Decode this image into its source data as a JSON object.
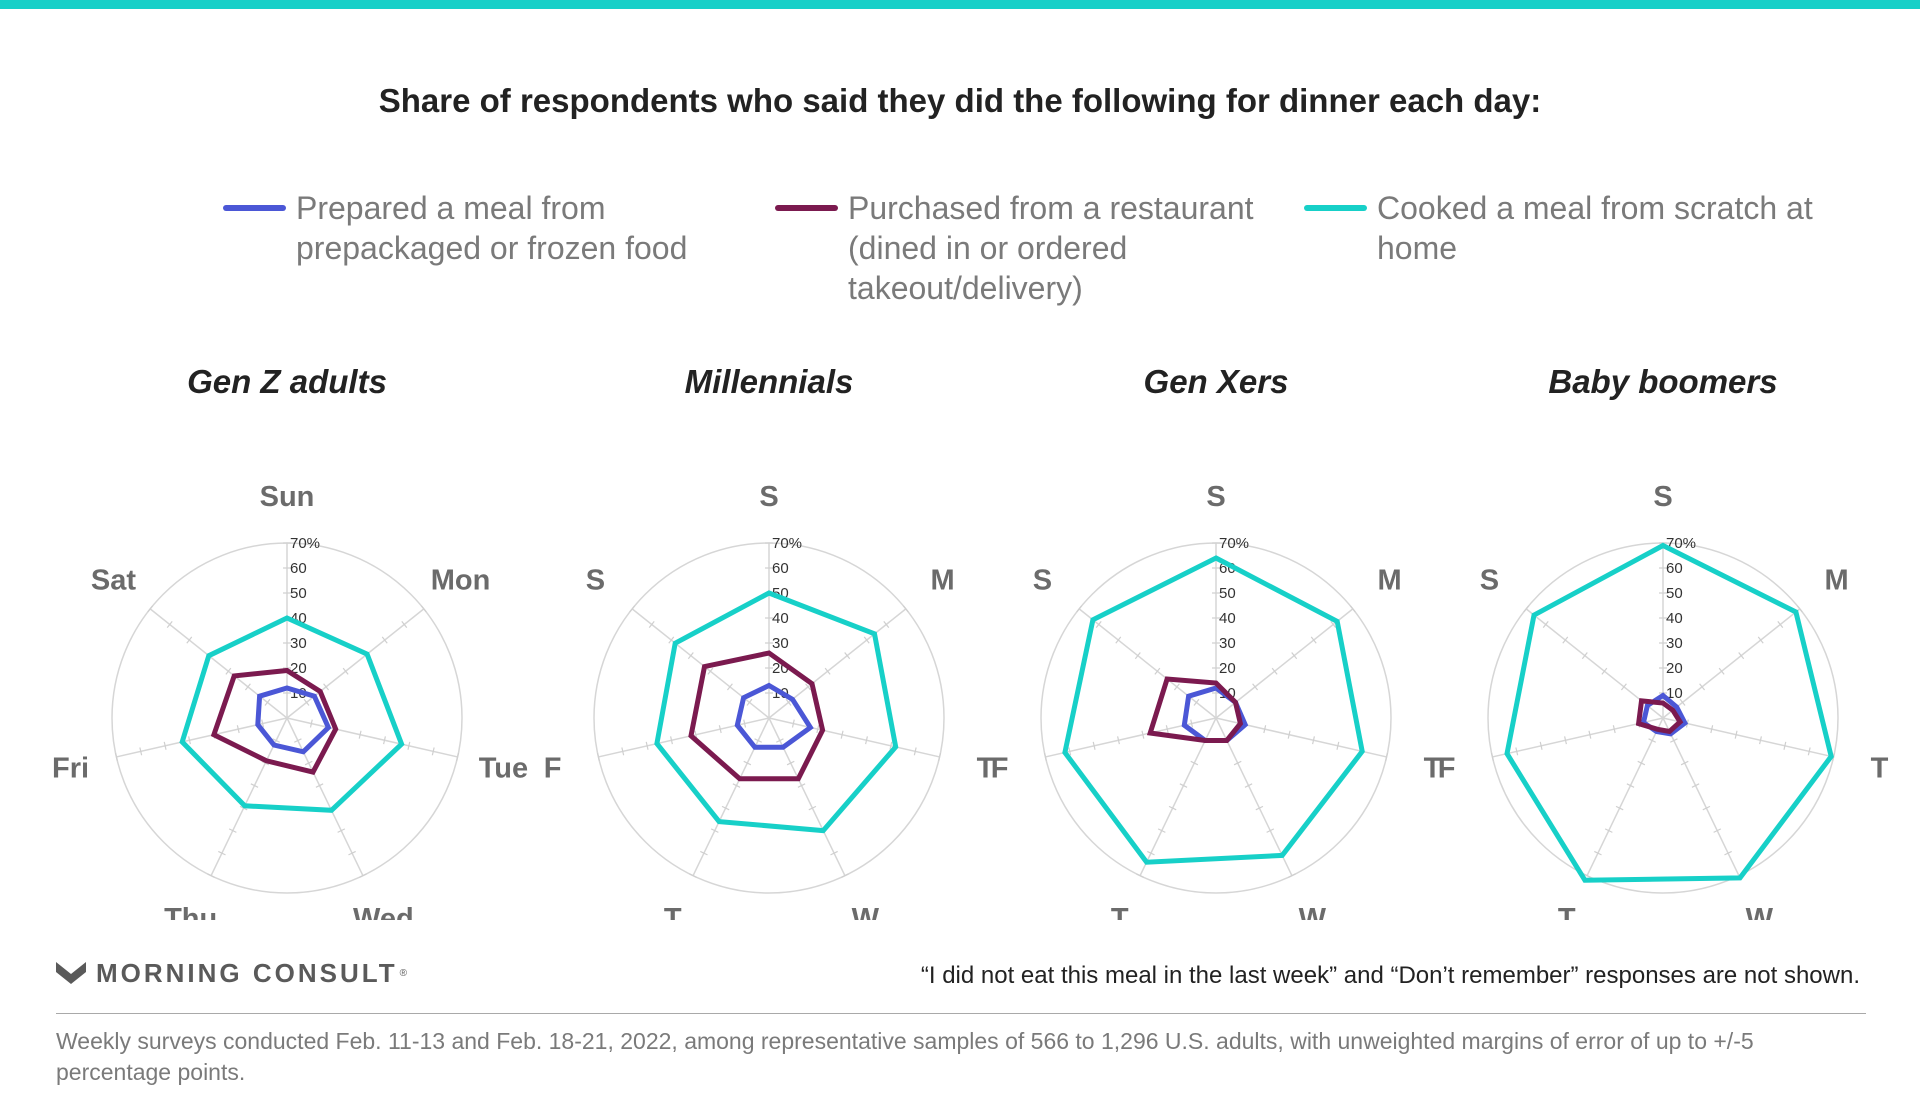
{
  "title": "Share of respondents who said they did the following for dinner each day:",
  "legend": [
    {
      "label": "Prepared a meal from prepackaged or frozen food",
      "color": "#4b57d6"
    },
    {
      "label": "Purchased from a restaurant (dined in or ordered takeout/delivery)",
      "color": "#7b1a4f"
    },
    {
      "label": "Cooked a meal from scratch at home",
      "color": "#17d0c8"
    }
  ],
  "note": "“I did not eat this meal in the last week” and “Don’t remember” responses are not shown.",
  "brand": {
    "name": "MORNING CONSULT",
    "mark": "®"
  },
  "source": "Weekly surveys conducted Feb. 11-13 and Feb. 18-21, 2022, among representative samples of 566 to 1,296 U.S. adults, with unweighted margins of error of up to +/-5 percentage points.",
  "chart_data": [
    {
      "type": "radar",
      "title": "Gen Z adults",
      "categories": [
        "Sun",
        "Mon",
        "Tue",
        "Wed",
        "Thu",
        "Fri",
        "Sat"
      ],
      "rlim": [
        0,
        70
      ],
      "ticks": [
        "10",
        "20",
        "30",
        "40",
        "50",
        "60",
        "70%"
      ],
      "series": [
        {
          "name": "Prepared a meal from prepackaged or frozen food",
          "values": [
            12,
            14,
            17,
            15,
            12,
            12,
            14
          ]
        },
        {
          "name": "Purchased from a restaurant (dined in or ordered takeout/delivery)",
          "values": [
            19,
            17,
            20,
            24,
            19,
            30,
            27
          ]
        },
        {
          "name": "Cooked a meal from scratch at home",
          "values": [
            40,
            41,
            47,
            41,
            39,
            43,
            40
          ]
        }
      ]
    },
    {
      "type": "radar",
      "title": "Millennials",
      "categories": [
        "S",
        "M",
        "T",
        "W",
        "T",
        "F",
        "S"
      ],
      "rlim": [
        0,
        70
      ],
      "ticks": [
        "10",
        "20",
        "30",
        "40",
        "50",
        "60",
        "70%"
      ],
      "series": [
        {
          "name": "Prepared a meal from prepackaged or frozen food",
          "values": [
            13,
            12,
            17,
            13,
            13,
            13,
            13
          ]
        },
        {
          "name": "Purchased from a restaurant (dined in or ordered takeout/delivery)",
          "values": [
            26,
            22,
            22,
            27,
            27,
            32,
            33
          ]
        },
        {
          "name": "Cooked a meal from scratch at home",
          "values": [
            50,
            54,
            52,
            50,
            46,
            46,
            48
          ]
        }
      ]
    },
    {
      "type": "radar",
      "title": "Gen Xers",
      "categories": [
        "S",
        "M",
        "T",
        "W",
        "T",
        "F",
        "S"
      ],
      "rlim": [
        0,
        70
      ],
      "ticks": [
        "10",
        "20",
        "30",
        "40",
        "50",
        "60",
        "70%"
      ],
      "series": [
        {
          "name": "Prepared a meal from prepackaged or frozen food",
          "values": [
            12,
            10,
            12,
            10,
            10,
            13,
            14
          ]
        },
        {
          "name": "Purchased from a restaurant (dined in or ordered takeout/delivery)",
          "values": [
            14,
            10,
            10,
            10,
            10,
            27,
            25
          ]
        },
        {
          "name": "Cooked a meal from scratch at home",
          "values": [
            64,
            62,
            60,
            61,
            64,
            62,
            63
          ]
        }
      ]
    },
    {
      "type": "radar",
      "title": "Baby boomers",
      "categories": [
        "S",
        "M",
        "T",
        "W",
        "T",
        "F",
        "S"
      ],
      "rlim": [
        0,
        70
      ],
      "ticks": [
        "10",
        "20",
        "30",
        "40",
        "50",
        "60",
        "70%"
      ],
      "series": [
        {
          "name": "Prepared a meal from prepackaged or frozen food",
          "values": [
            9,
            7,
            9,
            7,
            6,
            8,
            8
          ]
        },
        {
          "name": "Purchased from a restaurant (dined in or ordered takeout/delivery)",
          "values": [
            6,
            5,
            7,
            6,
            5,
            10,
            11
          ]
        },
        {
          "name": "Cooked a meal from scratch at home",
          "values": [
            69,
            68,
            69,
            71,
            72,
            64,
            66
          ]
        }
      ]
    }
  ]
}
